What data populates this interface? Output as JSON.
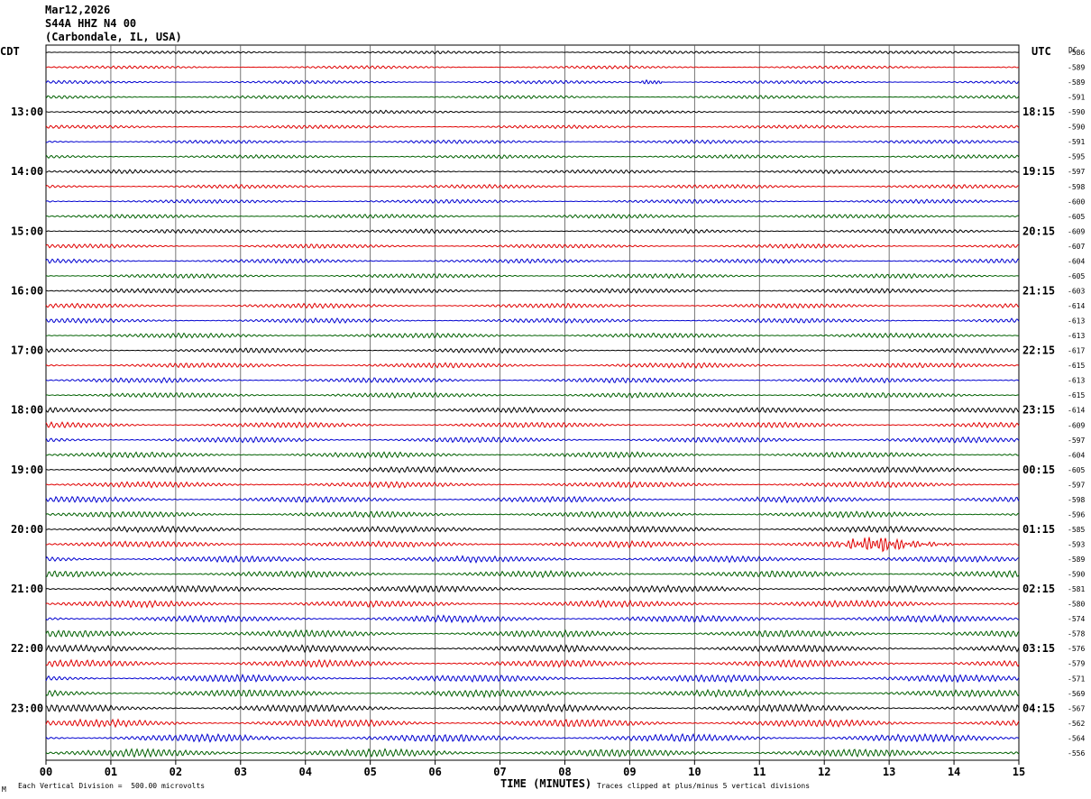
{
  "header": {
    "date": "Mar12,2026",
    "station": "S44A HHZ N4 00",
    "location": "(Carbondale, IL, USA)"
  },
  "chart_data": {
    "type": "line",
    "title": "Mar12,2026",
    "subtitle": "S44A HHZ N4 00 (Carbondale, IL, USA)",
    "left_tz": "CDT",
    "right_tz": "UTC",
    "dc_header": "DC",
    "xlabel": "TIME (MINUTES)",
    "x_ticks": [
      "00",
      "01",
      "02",
      "03",
      "04",
      "05",
      "06",
      "07",
      "08",
      "09",
      "10",
      "11",
      "12",
      "13",
      "14",
      "15"
    ],
    "xlim": [
      0,
      15
    ],
    "left_hour_labels": [
      "13:00",
      "14:00",
      "15:00",
      "16:00",
      "17:00",
      "18:00",
      "19:00",
      "20:00",
      "21:00",
      "22:00",
      "23:00"
    ],
    "right_hour_labels": [
      "18:15",
      "19:15",
      "20:15",
      "21:15",
      "22:15",
      "23:15",
      "00:15",
      "01:15",
      "02:15",
      "03:15",
      "04:15"
    ],
    "trace_colors": [
      "#000000",
      "#e00000",
      "#0000d0",
      "#006000"
    ],
    "dc_offsets": [
      "-586",
      "-589",
      "-589",
      "-591",
      "-590",
      "-590",
      "-591",
      "-595",
      "-597",
      "-598",
      "-600",
      "-605",
      "-609",
      "-607",
      "-604",
      "-605",
      "-603",
      "-614",
      "-613",
      "-613",
      "-617",
      "-615",
      "-613",
      "-615",
      "-614",
      "-609",
      "-597",
      "-604",
      "-605",
      "-597",
      "-598",
      "-596",
      "-585",
      "-593",
      "-589",
      "-590",
      "-581",
      "-580",
      "-574",
      "-578",
      "-576",
      "-579",
      "-571",
      "-569",
      "-567",
      "-562",
      "-564",
      "-556"
    ],
    "events": [
      {
        "trace": 33,
        "minute_start": 12.1,
        "minute_end": 14.4,
        "peak_minute": 12.9,
        "amplitude_divisions": 4.2
      },
      {
        "trace": 2,
        "minute_start": 9.1,
        "minute_end": 9.5,
        "peak_minute": 9.25,
        "amplitude_divisions": 1.5
      }
    ],
    "grid": true
  },
  "footer": {
    "scale": "Each Vertical Division =  500.00 microvolts",
    "clip": "Traces clipped at plus/minus 5 vertical divisions",
    "mark": "M"
  }
}
